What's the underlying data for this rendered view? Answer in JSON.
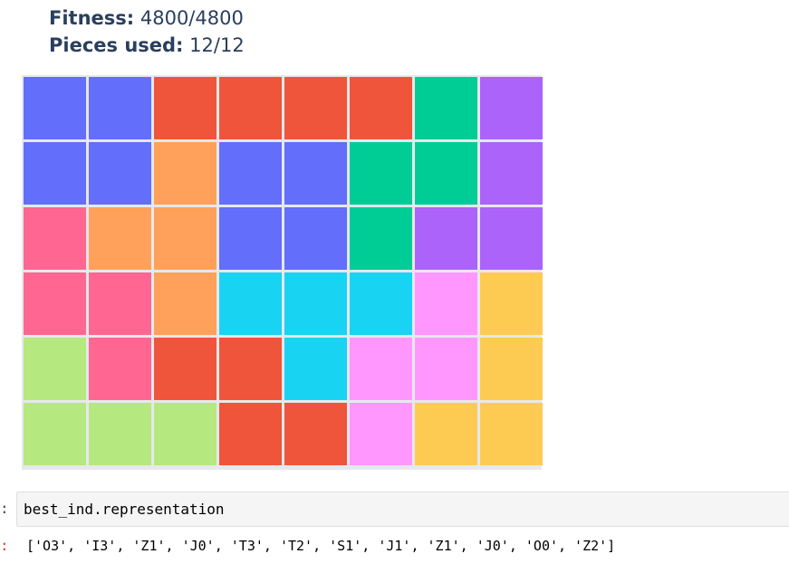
{
  "header": {
    "fitness_label": "Fitness:",
    "fitness_value": "4800/4800",
    "pieces_label": "Pieces used:",
    "pieces_value": "12/12"
  },
  "board": {
    "palette": {
      "blue": "#636efa",
      "red": "#ef553b",
      "green": "#00cc96",
      "purple": "#ab63fa",
      "orange": "#ffa15a",
      "cyan": "#19d3f3",
      "pink": "#ff6692",
      "lime": "#b6e880",
      "magenta": "#ff97ff",
      "yellow": "#fecb52"
    },
    "rows": [
      [
        "blue",
        "blue",
        "red",
        "red",
        "red",
        "red",
        "green",
        "purple"
      ],
      [
        "blue",
        "blue",
        "orange",
        "blue",
        "blue",
        "green",
        "green",
        "purple"
      ],
      [
        "pink",
        "orange",
        "orange",
        "blue",
        "blue",
        "green",
        "purple",
        "purple"
      ],
      [
        "pink",
        "pink",
        "orange",
        "cyan",
        "cyan",
        "cyan",
        "magenta",
        "yellow"
      ],
      [
        "lime",
        "pink",
        "red",
        "red",
        "cyan",
        "magenta",
        "magenta",
        "yellow"
      ],
      [
        "lime",
        "lime",
        "lime",
        "red",
        "red",
        "magenta",
        "yellow",
        "yellow"
      ]
    ]
  },
  "notebook": {
    "in_prompt": ":",
    "code": "best_ind.representation",
    "out_prompt": ":",
    "output": "['O3', 'I3', 'Z1', 'J0', 'T3', 'T2', 'S1', 'J1', 'Z1', 'J0', 'O0', 'Z2']"
  }
}
